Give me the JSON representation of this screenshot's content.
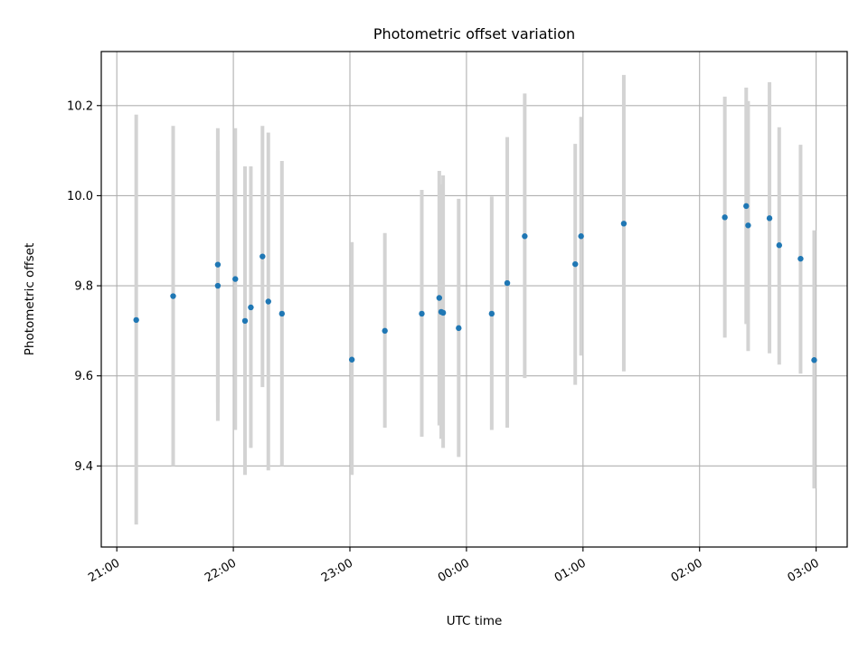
{
  "chart_data": {
    "type": "scatter",
    "title": "Photometric offset variation",
    "xlabel": "UTC time",
    "ylabel": "Photometric offset",
    "x_ticks": [
      "21:00",
      "22:00",
      "23:00",
      "00:00",
      "01:00",
      "02:00",
      "03:00"
    ],
    "y_ticks": [
      "9.4",
      "9.6",
      "9.8",
      "10.0",
      "10.2"
    ],
    "x_tick_values": [
      "21:00",
      "22:00",
      "23:00",
      "00:00",
      "01:00",
      "02:00",
      "03:00"
    ],
    "y_tick_values": [
      9.4,
      9.6,
      9.8,
      10.0,
      10.2
    ],
    "xlim": [
      "20:52",
      "03:16"
    ],
    "ylim": [
      9.22,
      10.32
    ],
    "grid": true,
    "colors": {
      "points": "#1f77b4",
      "error_bars": "#d3d3d3",
      "grid": "#b0b0b0"
    },
    "points": [
      {
        "x": "21:10",
        "y": 9.724,
        "low": 9.27,
        "high": 10.18
      },
      {
        "x": "21:29",
        "y": 9.777,
        "low": 9.4,
        "high": 10.155
      },
      {
        "x": "21:52",
        "y": 9.847,
        "low": 9.54,
        "high": 10.15
      },
      {
        "x": "21:52",
        "y": 9.8,
        "low": 9.5,
        "high": 10.1
      },
      {
        "x": "22:01",
        "y": 9.815,
        "low": 9.48,
        "high": 10.15
      },
      {
        "x": "22:06",
        "y": 9.722,
        "low": 9.38,
        "high": 10.065
      },
      {
        "x": "22:09",
        "y": 9.752,
        "low": 9.44,
        "high": 10.065
      },
      {
        "x": "22:15",
        "y": 9.865,
        "low": 9.575,
        "high": 10.155
      },
      {
        "x": "22:18",
        "y": 9.765,
        "low": 9.39,
        "high": 10.14
      },
      {
        "x": "22:25",
        "y": 9.738,
        "low": 9.4,
        "high": 10.077
      },
      {
        "x": "23:01",
        "y": 9.636,
        "low": 9.38,
        "high": 9.897
      },
      {
        "x": "23:18",
        "y": 9.7,
        "low": 9.485,
        "high": 9.917
      },
      {
        "x": "23:37",
        "y": 9.738,
        "low": 9.465,
        "high": 10.013
      },
      {
        "x": "23:46",
        "y": 9.773,
        "low": 9.49,
        "high": 10.055
      },
      {
        "x": "23:47",
        "y": 9.742,
        "low": 9.46,
        "high": 10.025
      },
      {
        "x": "23:48",
        "y": 9.74,
        "low": 9.44,
        "high": 10.045
      },
      {
        "x": "23:56",
        "y": 9.706,
        "low": 9.42,
        "high": 9.993
      },
      {
        "x": "00:13",
        "y": 9.738,
        "low": 9.48,
        "high": 9.998
      },
      {
        "x": "00:21",
        "y": 9.806,
        "low": 9.485,
        "high": 10.13
      },
      {
        "x": "00:30",
        "y": 9.91,
        "low": 9.595,
        "high": 10.227
      },
      {
        "x": "00:56",
        "y": 9.848,
        "low": 9.58,
        "high": 10.115
      },
      {
        "x": "00:59",
        "y": 9.91,
        "low": 9.645,
        "high": 10.175
      },
      {
        "x": "01:21",
        "y": 9.938,
        "low": 9.61,
        "high": 10.268
      },
      {
        "x": "02:13",
        "y": 9.952,
        "low": 9.685,
        "high": 10.22
      },
      {
        "x": "02:24",
        "y": 9.977,
        "low": 9.715,
        "high": 10.24
      },
      {
        "x": "02:25",
        "y": 9.934,
        "low": 9.655,
        "high": 10.21
      },
      {
        "x": "02:36",
        "y": 9.95,
        "low": 9.65,
        "high": 10.252
      },
      {
        "x": "02:41",
        "y": 9.89,
        "low": 9.625,
        "high": 10.152
      },
      {
        "x": "02:52",
        "y": 9.86,
        "low": 9.605,
        "high": 10.113
      },
      {
        "x": "02:59",
        "y": 9.635,
        "low": 9.35,
        "high": 9.923
      }
    ]
  }
}
